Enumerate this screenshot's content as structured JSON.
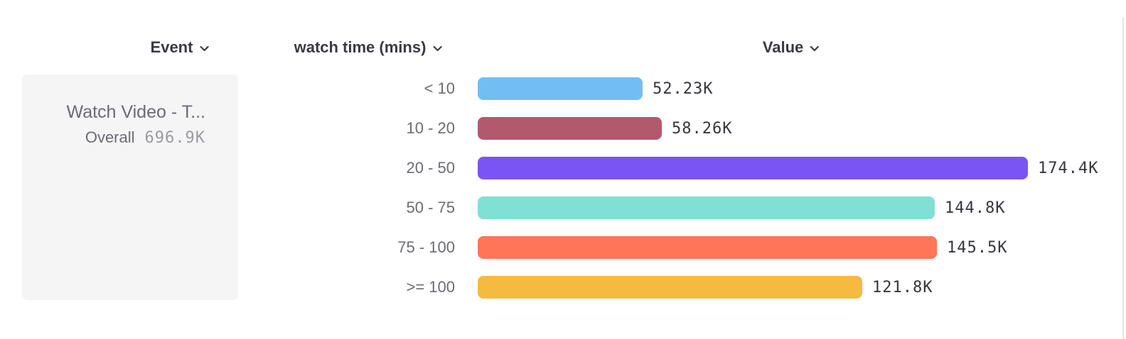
{
  "header": {
    "event_label": "Event",
    "breakdown_label": "watch time (mins)",
    "value_label": "Value"
  },
  "event_card": {
    "name": "Watch Video - T...",
    "overall_label": "Overall",
    "overall_value": "696.9K"
  },
  "chart_data": {
    "type": "bar",
    "orientation": "horizontal",
    "title": "",
    "xlabel": "Value",
    "ylabel": "watch time (mins)",
    "categories": [
      "< 10",
      "10 - 20",
      "20 - 50",
      "50 - 75",
      "75 - 100",
      ">= 100"
    ],
    "values": [
      52230,
      58260,
      174400,
      144800,
      145500,
      121800
    ],
    "value_labels": [
      "52.23K",
      "58.26K",
      "174.4K",
      "144.8K",
      "145.5K",
      "121.8K"
    ],
    "bar_colors": [
      "#72BEF4",
      "#B2596E",
      "#7A54F5",
      "#80E0D3",
      "#FF7557",
      "#F5BA40"
    ],
    "max_value": 174400,
    "overall_total_label": "696.9K",
    "grid": false,
    "legend": false
  },
  "colors": {
    "header_text": "#3A3A44",
    "label_text": "#6B6B76",
    "value_text": "#35353D",
    "overall_value_text": "#9B9BA3",
    "card_background": "#F5F5F6",
    "divider": "#E5E5E7"
  }
}
